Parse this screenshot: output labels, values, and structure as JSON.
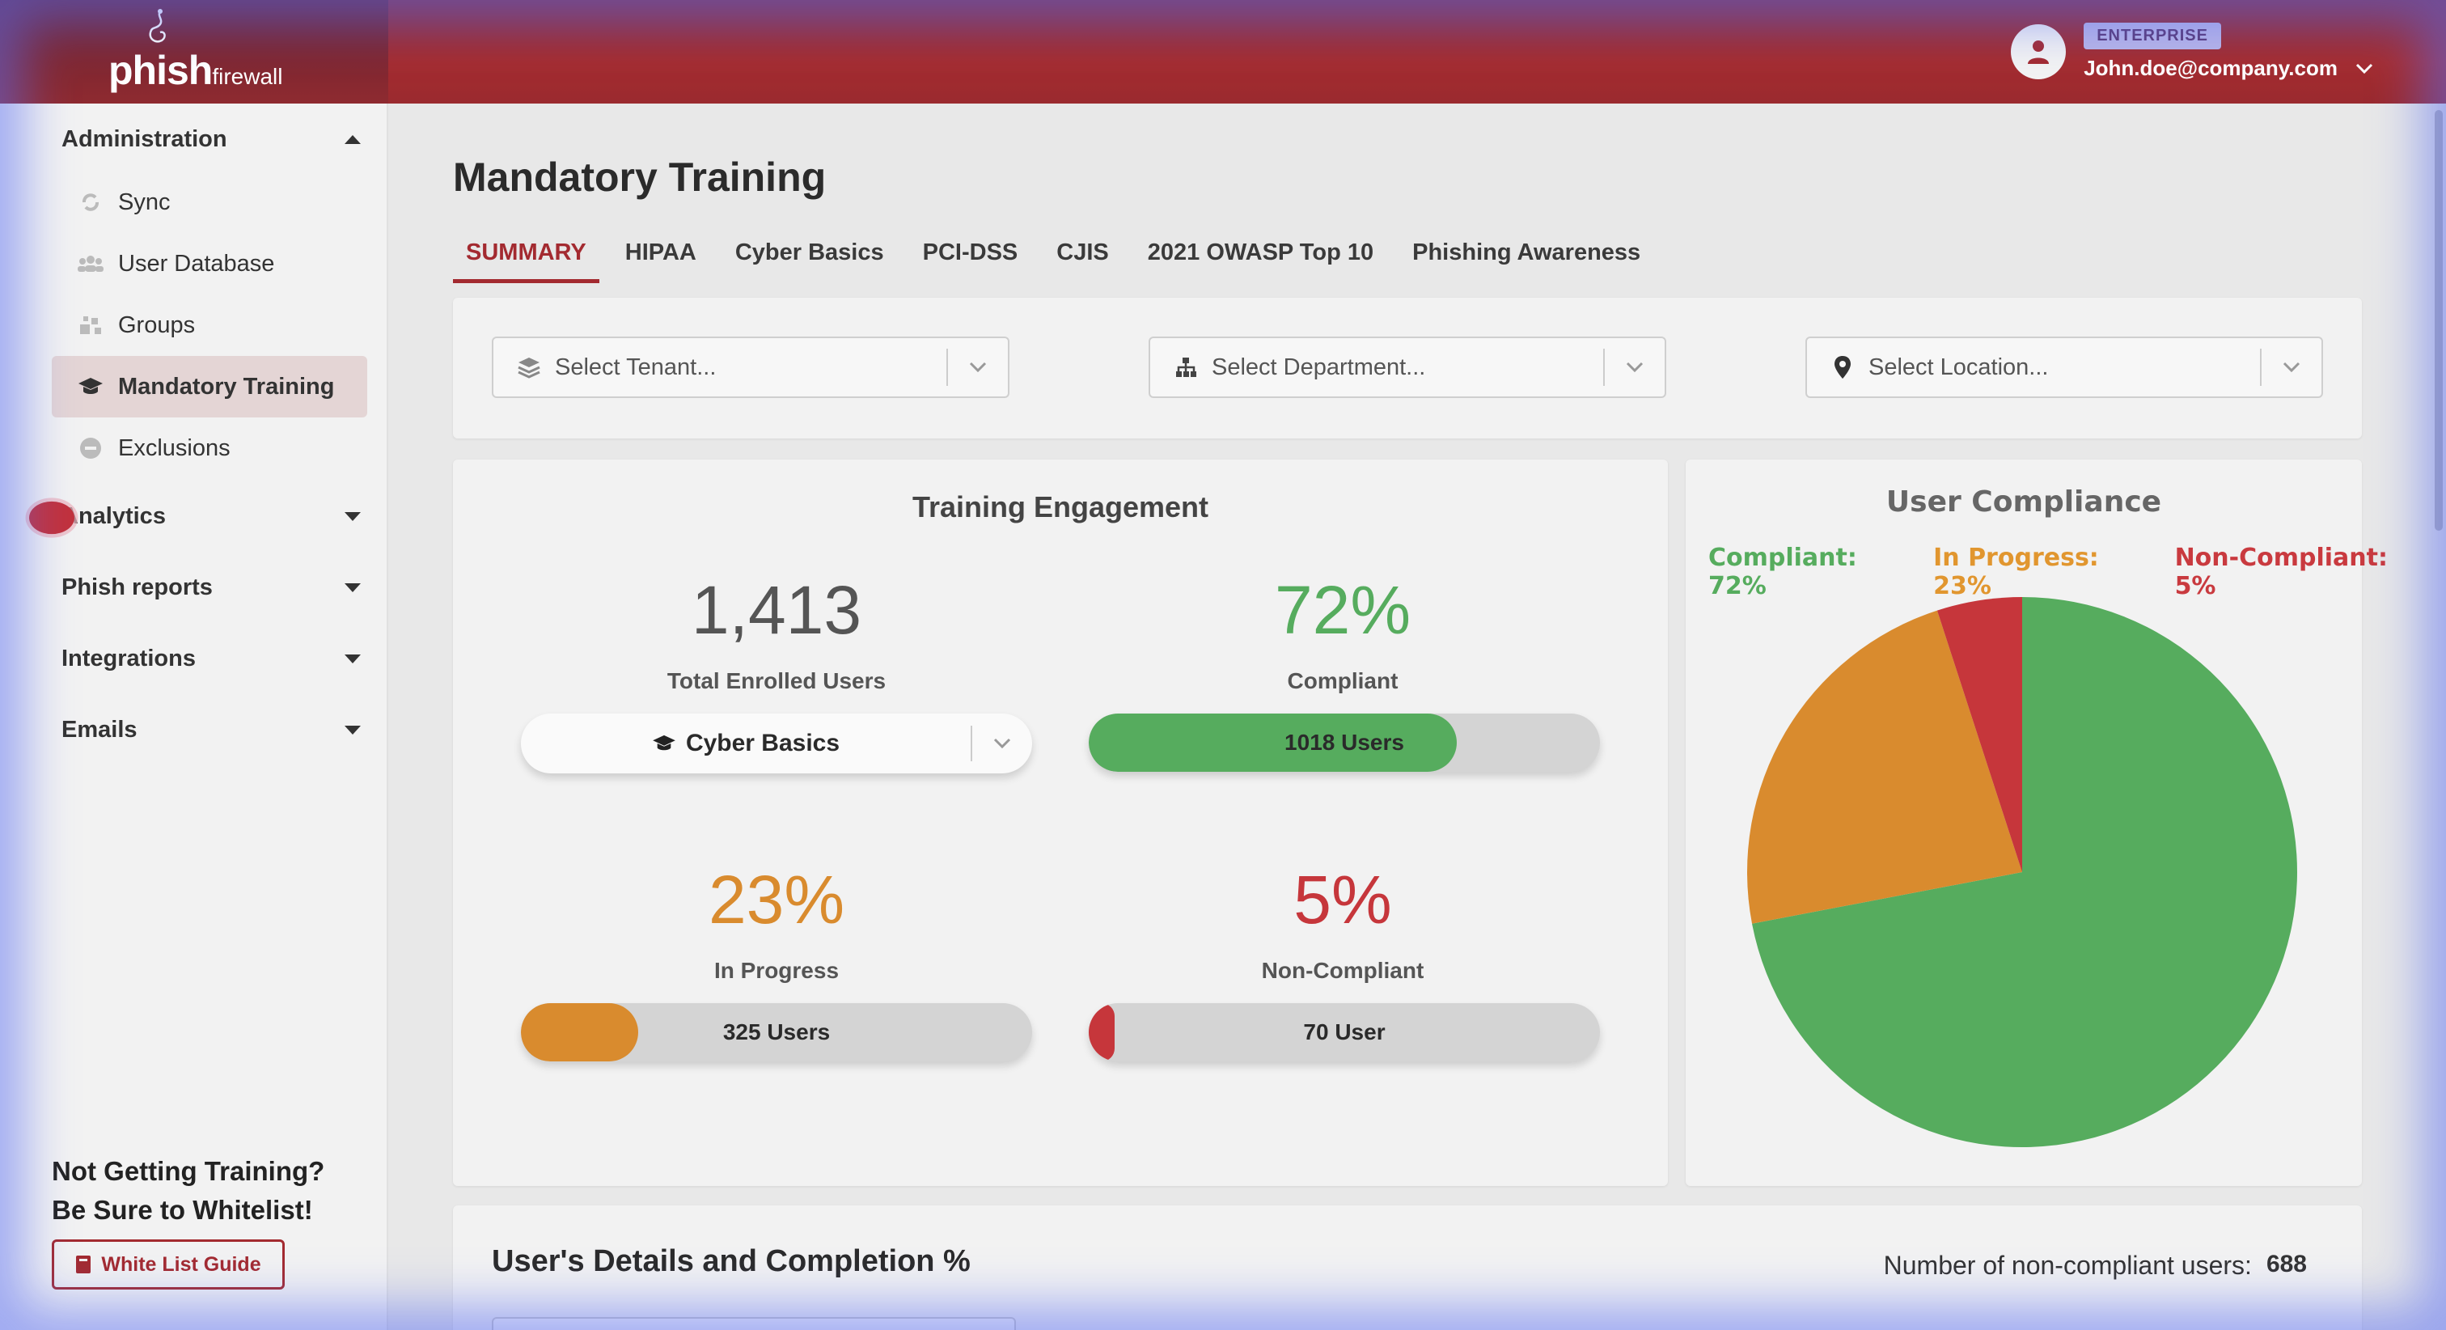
{
  "brand": {
    "name_main": "phish",
    "name_sub": "firewall"
  },
  "user": {
    "badge": "ENTERPRISE",
    "email": "John.doe@company.com"
  },
  "sidebar": {
    "sections": [
      {
        "label": "Administration",
        "expanded": true
      },
      {
        "label": "Analytics",
        "expanded": false
      },
      {
        "label": "Phish reports",
        "expanded": false
      },
      {
        "label": "Integrations",
        "expanded": false
      },
      {
        "label": "Emails",
        "expanded": false
      }
    ],
    "admin_items": [
      {
        "label": "Sync",
        "icon": "sync-icon"
      },
      {
        "label": "User Database",
        "icon": "users-icon"
      },
      {
        "label": "Groups",
        "icon": "groups-icon"
      },
      {
        "label": "Mandatory Training",
        "icon": "graduation-cap-icon",
        "active": true
      },
      {
        "label": "Exclusions",
        "icon": "minus-circle-icon"
      }
    ],
    "promo_line1": "Not Getting Training?",
    "promo_line2": "Be Sure to Whitelist!",
    "whitelist_button": "White List Guide"
  },
  "page": {
    "title": "Mandatory Training",
    "tabs": [
      "SUMMARY",
      "HIPAA",
      "Cyber Basics",
      "PCI-DSS",
      "CJIS",
      "2021 OWASP Top 10",
      "Phishing Awareness"
    ],
    "active_tab": "SUMMARY"
  },
  "filters": {
    "tenant": "Select Tenant...",
    "department": "Select Department...",
    "location": "Select Location..."
  },
  "engagement": {
    "title": "Training Engagement",
    "total_users": "1,413",
    "total_label": "Total Enrolled Users",
    "course": "Cyber Basics",
    "compliant_pct": "72%",
    "compliant_label": "Compliant",
    "compliant_users": "1018 Users",
    "compliant_fraction": 0.72,
    "inprogress_pct": "23%",
    "inprogress_label": "In Progress",
    "inprogress_users": "325 Users",
    "inprogress_fraction": 0.23,
    "noncompliant_pct": "5%",
    "noncompliant_label": "Non-Compliant",
    "noncompliant_users": "70 User",
    "noncompliant_fraction": 0.05
  },
  "compliance": {
    "title": "User Compliance",
    "legend": [
      {
        "text": "Compliant: 72%",
        "color": "#56ac5e"
      },
      {
        "text": "In Progress: 23%",
        "color": "#e1962f"
      },
      {
        "text": "Non-Compliant: 5%",
        "color": "#c93a3f"
      }
    ]
  },
  "chart_data": {
    "type": "pie",
    "title": "User Compliance",
    "categories": [
      "Compliant",
      "In Progress",
      "Non-Compliant"
    ],
    "values": [
      72,
      23,
      5
    ],
    "colors": [
      "#56ac5e",
      "#d98b2e",
      "#c6363b"
    ]
  },
  "details": {
    "title": "User's Details and Completion %",
    "noncompliant_label": "Number of non-compliant users:",
    "noncompliant_count": "688"
  },
  "colors": {
    "brand": "#a32a30",
    "compliant": "#56ac5e",
    "inprogress": "#d98b2e",
    "noncompliant": "#c6363b"
  }
}
